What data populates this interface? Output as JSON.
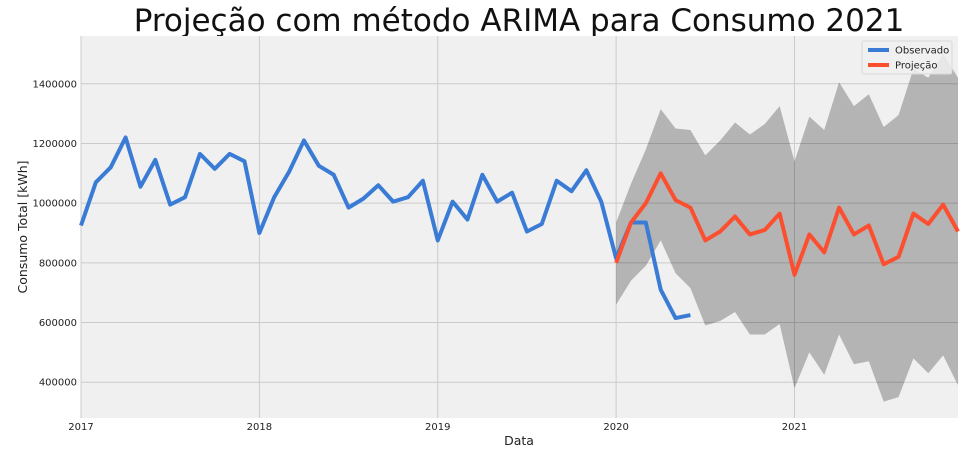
{
  "chart_data": {
    "type": "line",
    "title": "Projeção com método ARIMA para Consumo 2021",
    "xlabel": "Data",
    "ylabel": "Consumo Total [kWh]",
    "xlim": [
      "2017-01",
      "2021-12"
    ],
    "ylim": [
      280000,
      1560000
    ],
    "x_ticks": [
      "2017",
      "2018",
      "2019",
      "2020",
      "2021"
    ],
    "y_ticks": [
      "400000",
      "600000",
      "800000",
      "1000000",
      "1200000",
      "1400000"
    ],
    "y_tick_values": [
      400000,
      600000,
      800000,
      1000000,
      1200000,
      1400000
    ],
    "grid": true,
    "legend_position": "top-right",
    "background_color": "#f0f0f0",
    "grid_color": "#cbcbcb",
    "series": [
      {
        "name": "Observado",
        "color": "#3a7bd5",
        "x": [
          "2017-01",
          "2017-02",
          "2017-03",
          "2017-04",
          "2017-05",
          "2017-06",
          "2017-07",
          "2017-08",
          "2017-09",
          "2017-10",
          "2017-11",
          "2017-12",
          "2018-01",
          "2018-02",
          "2018-03",
          "2018-04",
          "2018-05",
          "2018-06",
          "2018-07",
          "2018-08",
          "2018-09",
          "2018-10",
          "2018-11",
          "2018-12",
          "2019-01",
          "2019-02",
          "2019-03",
          "2019-04",
          "2019-05",
          "2019-06",
          "2019-07",
          "2019-08",
          "2019-09",
          "2019-10",
          "2019-11",
          "2019-12",
          "2020-01",
          "2020-02",
          "2020-03",
          "2020-04",
          "2020-05",
          "2020-06"
        ],
        "values": [
          925000,
          1070000,
          1120000,
          1220000,
          1055000,
          1145000,
          995000,
          1020000,
          1165000,
          1115000,
          1165000,
          1140000,
          900000,
          1020000,
          1105000,
          1210000,
          1125000,
          1095000,
          985000,
          1015000,
          1060000,
          1005000,
          1020000,
          1075000,
          875000,
          1005000,
          945000,
          1095000,
          1005000,
          1035000,
          905000,
          930000,
          1075000,
          1040000,
          1110000,
          1005000,
          815000,
          935000,
          935000,
          710000,
          615000,
          625000
        ]
      },
      {
        "name": "Projeção",
        "color": "#fc4f30",
        "x": [
          "2020-01",
          "2020-02",
          "2020-03",
          "2020-04",
          "2020-05",
          "2020-06",
          "2020-07",
          "2020-08",
          "2020-09",
          "2020-10",
          "2020-11",
          "2020-12",
          "2021-01",
          "2021-02",
          "2021-03",
          "2021-04",
          "2021-05",
          "2021-06",
          "2021-07",
          "2021-08",
          "2021-09",
          "2021-10",
          "2021-11",
          "2021-12"
        ],
        "values": [
          800000,
          935000,
          1000000,
          1100000,
          1010000,
          985000,
          875000,
          905000,
          955000,
          895000,
          910000,
          965000,
          760000,
          895000,
          835000,
          985000,
          895000,
          925000,
          795000,
          820000,
          965000,
          930000,
          995000,
          905000
        ],
        "ci_lower": [
          660000,
          740000,
          790000,
          875000,
          765000,
          715000,
          590000,
          605000,
          635000,
          560000,
          560000,
          595000,
          380000,
          500000,
          425000,
          560000,
          460000,
          470000,
          335000,
          350000,
          480000,
          430000,
          490000,
          390000
        ],
        "ci_upper": [
          935000,
          1065000,
          1180000,
          1315000,
          1250000,
          1245000,
          1160000,
          1210000,
          1270000,
          1230000,
          1265000,
          1325000,
          1140000,
          1290000,
          1245000,
          1405000,
          1325000,
          1365000,
          1255000,
          1295000,
          1450000,
          1420000,
          1500000,
          1420000
        ]
      }
    ]
  }
}
